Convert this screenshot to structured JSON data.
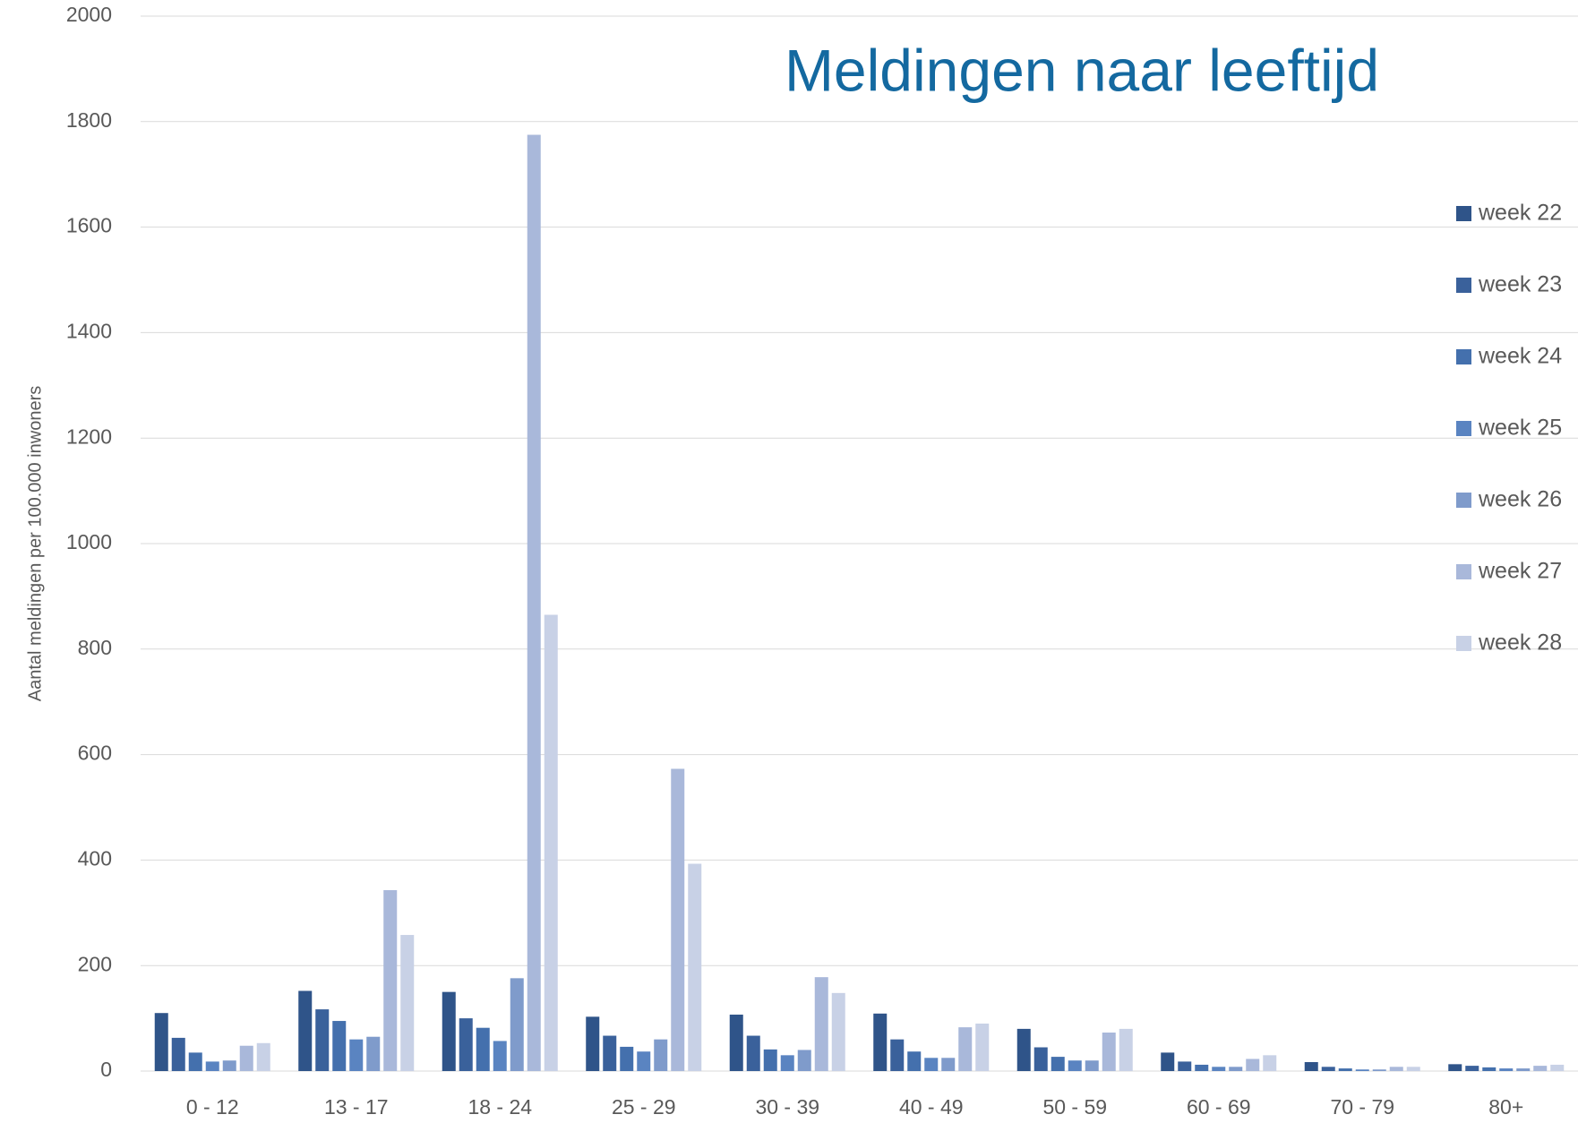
{
  "chart_data": {
    "type": "bar",
    "title": "Meldingen naar leeftijd",
    "y_label": "Aantal meldingen per 100.000 inwoners",
    "categories": [
      "0 - 12",
      "13 - 17",
      "18 - 24",
      "25 - 29",
      "30 - 39",
      "40 - 49",
      "50 - 59",
      "60 - 69",
      "70 - 79",
      "80+"
    ],
    "series": [
      {
        "name": "week 22",
        "color": "#2f5489",
        "values": [
          110,
          152,
          150,
          103,
          107,
          109,
          80,
          35,
          17,
          13
        ]
      },
      {
        "name": "week 23",
        "color": "#3a619b",
        "values": [
          63,
          117,
          100,
          67,
          67,
          60,
          45,
          18,
          8,
          10
        ]
      },
      {
        "name": "week 24",
        "color": "#4470ad",
        "values": [
          35,
          95,
          82,
          46,
          41,
          37,
          27,
          12,
          5,
          7
        ]
      },
      {
        "name": "week 25",
        "color": "#5a84c1",
        "values": [
          18,
          60,
          57,
          37,
          30,
          25,
          20,
          8,
          3,
          5
        ]
      },
      {
        "name": "week 26",
        "color": "#7f9bcb",
        "values": [
          20,
          65,
          176,
          60,
          40,
          25,
          20,
          8,
          3,
          5
        ]
      },
      {
        "name": "week 27",
        "color": "#a9b8da",
        "values": [
          48,
          343,
          1775,
          573,
          178,
          83,
          73,
          23,
          8,
          10
        ]
      },
      {
        "name": "week 28",
        "color": "#c8d1e6",
        "values": [
          53,
          258,
          865,
          393,
          148,
          90,
          80,
          30,
          8,
          12
        ]
      }
    ],
    "ylim": [
      0,
      2000
    ],
    "yticks": [
      0,
      200,
      400,
      600,
      800,
      1000,
      1200,
      1400,
      1600,
      1800,
      2000
    ],
    "grid": true,
    "legend": "right"
  }
}
